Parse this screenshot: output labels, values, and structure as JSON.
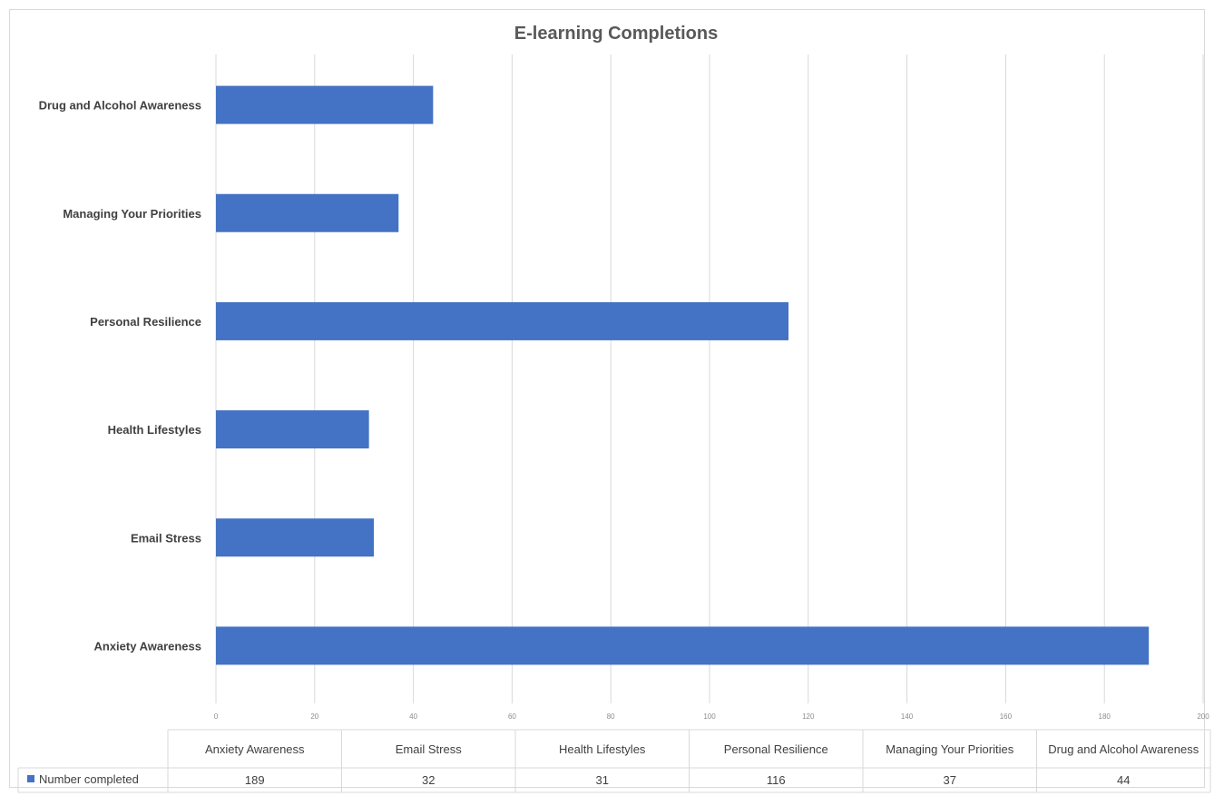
{
  "chart_data": {
    "type": "bar",
    "orientation": "horizontal",
    "title": "E-learning Completions",
    "categories": [
      "Anxiety Awareness",
      "Email Stress",
      "Health Lifestyles",
      "Personal Resilience",
      "Managing Your Priorities",
      "Drug and Alcohol Awareness"
    ],
    "series": [
      {
        "name": "Number completed",
        "values": [
          189,
          32,
          31,
          116,
          37,
          44
        ],
        "color": "#4472c4"
      }
    ],
    "xlim": [
      0,
      200
    ],
    "x_ticks": [
      "0",
      "20",
      "40",
      "60",
      "80",
      "100",
      "120",
      "140",
      "160",
      "180",
      "200"
    ],
    "grid": "vertical",
    "legend": "data-table-left",
    "data_table": {
      "headers": [
        "Anxiety Awareness",
        "Email Stress",
        "Health Lifestyles",
        "Personal Resilience",
        "Managing Your Priorities",
        "Drug and Alcohol Awareness"
      ],
      "row_label": "Number completed",
      "values": [
        "189",
        "32",
        "31",
        "116",
        "37",
        "44"
      ]
    }
  }
}
